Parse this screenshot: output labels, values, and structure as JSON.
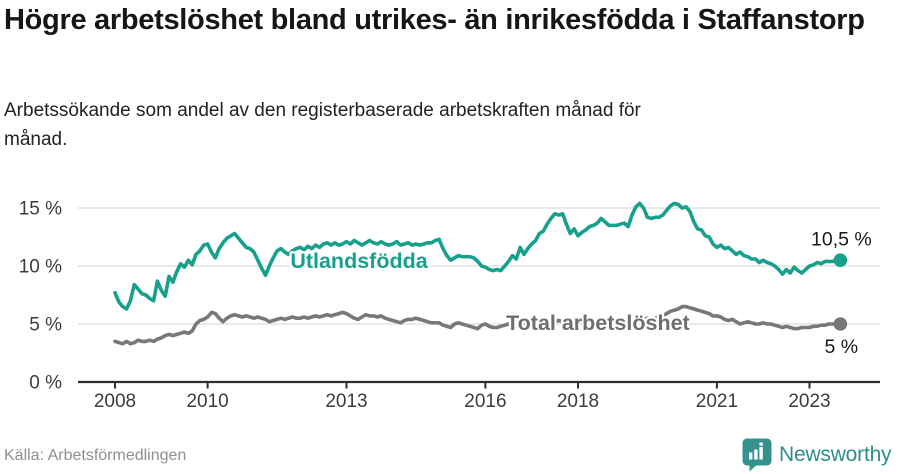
{
  "header": {
    "title": "Högre arbetslöshet bland utrikes- än inrikesfödda i Staffanstorp",
    "subtitle": "Arbetssökande som andel av den registerbaserade arbetskraften månad för månad."
  },
  "footer": {
    "source": "Källa: Arbetsförmedlingen",
    "brand": "Newsworthy",
    "brand_icon": "newsworthy-bubble-bar-chart-icon"
  },
  "colors": {
    "accent_teal": "#17a18d",
    "series_gray": "#787878",
    "gray_label": "#6e6e6e",
    "grid": "#dcdcdc",
    "axis": "#2f2f2f",
    "tick_text": "#3c3c3c",
    "value_text": "#1a1a1a",
    "muted_text": "#8f8f8f",
    "brand_teal": "#35918d"
  },
  "chart_data": {
    "type": "line",
    "title": "",
    "xlabel": "",
    "ylabel": "",
    "x_start_year": 2008,
    "x_step_months": 1,
    "x_ticks": [
      2008,
      2010,
      2013,
      2016,
      2018,
      2021,
      2023
    ],
    "y_ticks": [
      {
        "value": 0,
        "label": "0 %"
      },
      {
        "value": 5,
        "label": "5 %"
      },
      {
        "value": 10,
        "label": "10 %"
      },
      {
        "value": 15,
        "label": "15 %"
      }
    ],
    "ylim": [
      0,
      17
    ],
    "grid": "horizontal",
    "legend_position": "inline-labels",
    "series": [
      {
        "name": "Total arbetslöshet",
        "color": "#787878",
        "label_color": "#6e6e6e",
        "end_label": "5 %",
        "end_label_side": "below",
        "label_anchor": {
          "year": 2018.43,
          "value": 4.48
        },
        "values": [
          3.5,
          3.4,
          3.3,
          3.5,
          3.3,
          3.4,
          3.6,
          3.5,
          3.5,
          3.6,
          3.5,
          3.7,
          3.8,
          4.0,
          4.1,
          4.0,
          4.1,
          4.2,
          4.3,
          4.2,
          4.4,
          5.0,
          5.3,
          5.4,
          5.6,
          6.0,
          5.9,
          5.5,
          5.2,
          5.5,
          5.7,
          5.8,
          5.7,
          5.6,
          5.7,
          5.6,
          5.5,
          5.6,
          5.5,
          5.4,
          5.2,
          5.3,
          5.4,
          5.5,
          5.4,
          5.5,
          5.6,
          5.5,
          5.5,
          5.6,
          5.5,
          5.6,
          5.7,
          5.6,
          5.7,
          5.8,
          5.7,
          5.8,
          5.9,
          6.0,
          5.9,
          5.7,
          5.5,
          5.4,
          5.6,
          5.8,
          5.7,
          5.7,
          5.6,
          5.7,
          5.5,
          5.4,
          5.3,
          5.2,
          5.1,
          5.3,
          5.4,
          5.4,
          5.5,
          5.4,
          5.3,
          5.2,
          5.1,
          5.1,
          5.1,
          4.9,
          4.8,
          4.7,
          5.0,
          5.1,
          5.0,
          4.9,
          4.8,
          4.7,
          4.6,
          4.9,
          5.0,
          4.8,
          4.7,
          4.7,
          4.8,
          4.9,
          5.0,
          4.9,
          4.8,
          4.9,
          5.0,
          5.0,
          5.0,
          5.1,
          5.0,
          5.1,
          5.2,
          5.1,
          5.2,
          5.3,
          5.2,
          5.2,
          5.1,
          5.2,
          5.2,
          5.1,
          5.2,
          5.1,
          5.0,
          5.1,
          5.2,
          5.1,
          5.0,
          5.1,
          5.0,
          5.1,
          5.1,
          5.2,
          5.3,
          5.2,
          5.3,
          5.4,
          5.5,
          5.4,
          5.5,
          5.6,
          5.7,
          5.9,
          6.1,
          6.2,
          6.3,
          6.5,
          6.5,
          6.4,
          6.3,
          6.2,
          6.1,
          6.0,
          5.9,
          5.7,
          5.7,
          5.6,
          5.4,
          5.3,
          5.4,
          5.2,
          5.0,
          5.1,
          5.2,
          5.1,
          5.0,
          5.0,
          5.1,
          5.0,
          5.0,
          4.9,
          4.8,
          4.7,
          4.8,
          4.7,
          4.6,
          4.6,
          4.7,
          4.7,
          4.7,
          4.8,
          4.8,
          4.9,
          4.9,
          5.0,
          5.0,
          5.0,
          5.0
        ]
      },
      {
        "name": "Utlandsfödda",
        "color": "#17a18d",
        "label_color": "#17a18d",
        "end_label": "10,5 %",
        "end_label_side": "above",
        "label_anchor": {
          "year": 2013.27,
          "value": 9.82
        },
        "values": [
          7.7,
          6.9,
          6.5,
          6.3,
          7.0,
          8.4,
          8.0,
          7.6,
          7.5,
          7.2,
          7.0,
          8.7,
          7.9,
          7.4,
          9.1,
          8.6,
          9.5,
          10.2,
          9.9,
          10.5,
          10.1,
          11.0,
          11.3,
          11.8,
          11.9,
          11.2,
          10.7,
          11.5,
          12.0,
          12.4,
          12.6,
          12.8,
          12.4,
          12.0,
          11.6,
          11.5,
          11.2,
          10.5,
          9.8,
          9.2,
          10.0,
          10.7,
          11.3,
          11.5,
          11.2,
          11.0,
          11.3,
          11.5,
          11.6,
          11.4,
          11.7,
          11.5,
          11.8,
          11.6,
          11.9,
          12.0,
          11.8,
          12.0,
          11.8,
          11.9,
          12.1,
          11.9,
          12.2,
          12.0,
          11.8,
          12.0,
          12.2,
          12.0,
          11.9,
          12.1,
          11.9,
          11.8,
          11.9,
          12.1,
          11.8,
          11.9,
          12.0,
          11.8,
          11.9,
          11.8,
          11.9,
          12.0,
          12.0,
          12.2,
          12.3,
          11.5,
          10.9,
          10.5,
          10.7,
          10.9,
          10.8,
          10.8,
          10.8,
          10.7,
          10.4,
          10.0,
          9.9,
          9.7,
          9.6,
          9.7,
          9.6,
          10.0,
          10.4,
          10.9,
          10.6,
          11.6,
          11.0,
          11.5,
          11.9,
          12.2,
          12.8,
          13.0,
          13.6,
          14.1,
          14.5,
          14.4,
          14.5,
          13.6,
          12.8,
          13.2,
          12.6,
          12.9,
          13.1,
          13.4,
          13.5,
          13.7,
          14.1,
          13.8,
          13.5,
          13.5,
          13.5,
          13.6,
          13.7,
          13.4,
          14.4,
          15.1,
          15.4,
          15.0,
          14.2,
          14.1,
          14.2,
          14.2,
          14.4,
          14.8,
          15.2,
          15.4,
          15.3,
          15.0,
          15.1,
          14.7,
          13.8,
          13.2,
          13.1,
          12.6,
          12.5,
          11.9,
          11.6,
          11.8,
          11.5,
          11.6,
          11.3,
          11.0,
          11.2,
          10.9,
          10.8,
          10.6,
          10.6,
          10.3,
          10.5,
          10.3,
          10.2,
          10.0,
          9.7,
          9.3,
          9.7,
          9.4,
          9.9,
          9.6,
          9.4,
          9.7,
          10.0,
          10.1,
          10.3,
          10.2,
          10.4,
          10.4,
          10.4,
          10.5,
          10.5
        ]
      }
    ]
  }
}
